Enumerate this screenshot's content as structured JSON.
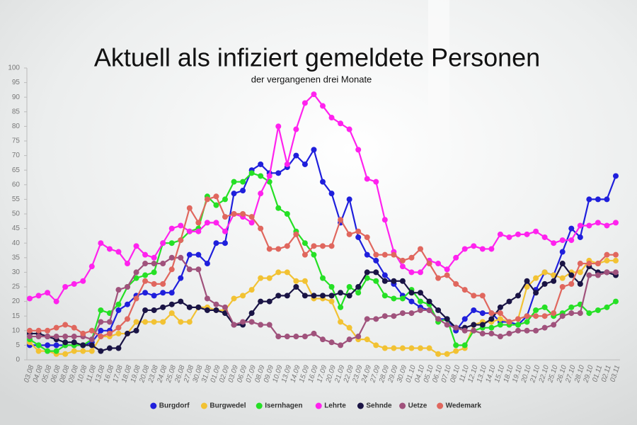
{
  "chart_data": {
    "type": "line",
    "title": "Aktuell als infiziert gemeldete Personen",
    "subtitle": "der vergangenen drei Monate",
    "categories": [
      "03.08",
      "04.08",
      "05.08",
      "06.08",
      "08.08",
      "09.08",
      "10.08",
      "11.08",
      "13.08",
      "16.08",
      "17.08",
      "18.08",
      "19.08",
      "20.08",
      "23.08",
      "24.08",
      "25.08",
      "26.08",
      "27.08",
      "30.08",
      "31.08",
      "01.09",
      "02.09",
      "03.09",
      "06.09",
      "07.09",
      "08.09",
      "09.09",
      "10.09",
      "13.09",
      "14.09",
      "15.09",
      "16.09",
      "17.09",
      "20.09",
      "21.09",
      "22.09",
      "23.09",
      "24.09",
      "27.09",
      "28.09",
      "29.09",
      "30.09",
      "01.10",
      "04.10",
      "05.10",
      "06.10",
      "07.10",
      "08.10",
      "11.10",
      "12.10",
      "13.10",
      "14.10",
      "15.10",
      "18.10",
      "19.10",
      "20.10",
      "21.10",
      "22.10",
      "25.10",
      "26.10",
      "27.10",
      "28.10",
      "29.10",
      "01.11",
      "02.11",
      "03.11"
    ],
    "ylim": [
      0,
      100
    ],
    "yticks": [
      0,
      5,
      10,
      15,
      20,
      25,
      30,
      35,
      40,
      45,
      50,
      55,
      60,
      65,
      70,
      75,
      80,
      85,
      90,
      95,
      100
    ],
    "grid": false,
    "legend": "bottom",
    "series": [
      {
        "name": "Burgdorf",
        "color": "#1f1fdc",
        "values": [
          5,
          5,
          5,
          5,
          5,
          5,
          5,
          6,
          10,
          10,
          17,
          19,
          22,
          23,
          22,
          23,
          23,
          28,
          36,
          36,
          33,
          40,
          40,
          57,
          58,
          65,
          67,
          64,
          64,
          66,
          70,
          67,
          72,
          61,
          57,
          47,
          55,
          42,
          36,
          34,
          29,
          26,
          22,
          20,
          18,
          17,
          14,
          14,
          10,
          14,
          17,
          16,
          16,
          13,
          13,
          12,
          15,
          24,
          30,
          29,
          37,
          45,
          42,
          55,
          55,
          55,
          63
        ]
      },
      {
        "name": "Burgwedel",
        "color": "#f2c233",
        "values": [
          6,
          3,
          3,
          2,
          2,
          3,
          3,
          3,
          8,
          8,
          9,
          9,
          13,
          13,
          13,
          13,
          16,
          13,
          13,
          18,
          18,
          17,
          17,
          21,
          22,
          24,
          28,
          28,
          30,
          30,
          27,
          27,
          21,
          21,
          20,
          13,
          11,
          7,
          7,
          5,
          4,
          4,
          4,
          4,
          4,
          4,
          2,
          2,
          3,
          4,
          12,
          13,
          13,
          14,
          13,
          14,
          25,
          28,
          30,
          29,
          28,
          30,
          30,
          34,
          33,
          34,
          34
        ]
      },
      {
        "name": "Isernhagen",
        "color": "#25e025",
        "values": [
          7,
          5,
          3,
          3,
          5,
          5,
          5,
          7,
          17,
          16,
          19,
          25,
          28,
          29,
          30,
          40,
          40,
          41,
          44,
          45,
          56,
          53,
          55,
          61,
          61,
          64,
          63,
          61,
          52,
          50,
          44,
          40,
          36,
          28,
          25,
          18,
          25,
          23,
          28,
          27,
          22,
          21,
          21,
          24,
          20,
          19,
          13,
          14,
          5,
          5,
          10,
          11,
          11,
          12,
          12,
          12,
          13,
          17,
          18,
          15,
          16,
          18,
          19,
          16,
          17,
          18,
          20
        ]
      },
      {
        "name": "Lehrte",
        "color": "#ff22ee",
        "values": [
          21,
          22,
          23,
          20,
          25,
          26,
          27,
          32,
          40,
          38,
          37,
          33,
          39,
          36,
          35,
          40,
          45,
          46,
          44,
          44,
          47,
          47,
          44,
          50,
          49,
          47,
          57,
          63,
          80,
          67,
          79,
          88,
          91,
          87,
          83,
          81,
          79,
          72,
          62,
          61,
          48,
          37,
          32,
          30,
          30,
          34,
          33,
          31,
          35,
          38,
          39,
          38,
          38,
          43,
          42,
          43,
          43,
          44,
          42,
          40,
          41,
          41,
          46,
          46,
          47,
          46,
          47
        ]
      },
      {
        "name": "Sehnde",
        "color": "#1a1445",
        "values": [
          9,
          9,
          8,
          7,
          6,
          6,
          5,
          5,
          3,
          4,
          4,
          9,
          10,
          17,
          17,
          18,
          19,
          20,
          18,
          18,
          17,
          17,
          16,
          12,
          12,
          16,
          20,
          20,
          22,
          22,
          25,
          22,
          22,
          22,
          22,
          23,
          22,
          25,
          30,
          30,
          27,
          27,
          27,
          23,
          23,
          20,
          17,
          14,
          11,
          11,
          12,
          12,
          14,
          18,
          20,
          22,
          27,
          23,
          26,
          27,
          33,
          29,
          26,
          32,
          30,
          30,
          29
        ]
      },
      {
        "name": "Uetze",
        "color": "#a0527c",
        "values": [
          8,
          8,
          8,
          8,
          8,
          8,
          8,
          7,
          13,
          13,
          24,
          25,
          30,
          33,
          33,
          33,
          35,
          35,
          31,
          31,
          21,
          19,
          18,
          12,
          13,
          13,
          12,
          12,
          8,
          8,
          8,
          8,
          9,
          7,
          6,
          5,
          7,
          8,
          14,
          14,
          15,
          15,
          16,
          16,
          17,
          17,
          14,
          12,
          11,
          10,
          10,
          9,
          9,
          8,
          9,
          10,
          10,
          10,
          11,
          12,
          15,
          16,
          16,
          29,
          29,
          30,
          30
        ]
      },
      {
        "name": "Wedemark",
        "color": "#e0675e",
        "values": [
          10,
          10,
          10,
          11,
          12,
          11,
          9,
          10,
          8,
          9,
          11,
          14,
          21,
          27,
          26,
          26,
          31,
          41,
          52,
          47,
          55,
          56,
          49,
          50,
          50,
          49,
          45,
          38,
          38,
          39,
          43,
          36,
          39,
          39,
          39,
          48,
          43,
          44,
          42,
          36,
          36,
          36,
          34,
          35,
          38,
          33,
          28,
          29,
          26,
          24,
          22,
          22,
          16,
          16,
          13,
          14,
          15,
          15,
          15,
          16,
          25,
          26,
          33,
          33,
          33,
          36,
          36
        ]
      }
    ]
  }
}
